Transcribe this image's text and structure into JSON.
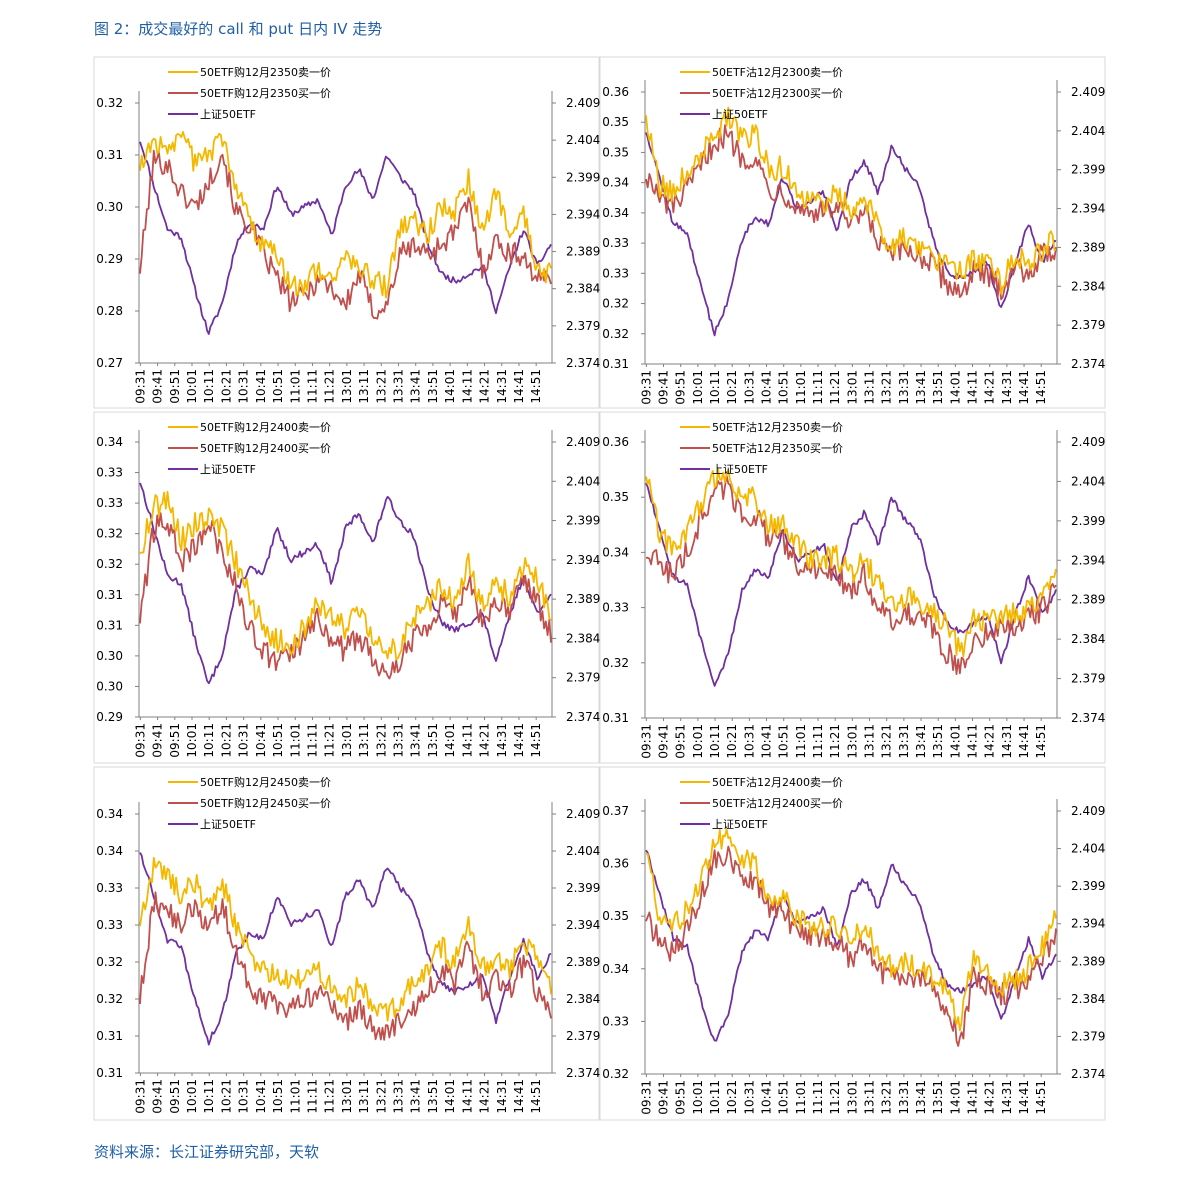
{
  "title": "图 2：成交最好的 call 和 put 日内 IV 走势",
  "source": "资料来源：长江证券研究部，天软",
  "colors": {
    "sell": "#f5b800",
    "buy": "#c0504d",
    "etf": "#7030a0",
    "axis": "#808080",
    "panel_border": "#d9d9d9"
  },
  "time_labels": [
    "09:31",
    "09:41",
    "09:51",
    "10:01",
    "10:11",
    "10:21",
    "10:31",
    "10:41",
    "10:51",
    "11:01",
    "11:11",
    "11:21",
    "13:01",
    "13:11",
    "13:21",
    "13:31",
    "13:41",
    "13:51",
    "14:01",
    "14:11",
    "14:21",
    "14:31",
    "14:41",
    "14:51"
  ],
  "chart_data": [
    {
      "type": "line",
      "legend": [
        "50ETF购12月2350卖一价",
        "50ETF购12月2350买一价",
        "上证50ETF"
      ],
      "y_left": {
        "ticks": [
          "0.32",
          "0.31",
          "0.30",
          "0.29",
          "0.28",
          "0.27"
        ],
        "range": [
          0.27,
          0.325
        ]
      },
      "y_right": {
        "ticks": [
          "2.409",
          "2.404",
          "2.399",
          "2.394",
          "2.389",
          "2.384",
          "2.379",
          "2.374"
        ],
        "range": [
          2.374,
          2.409
        ]
      },
      "sell_anchors": [
        0.311,
        0.318,
        0.313,
        0.32,
        0.312,
        0.314,
        0.318,
        0.306,
        0.3,
        0.294,
        0.293,
        0.287,
        0.286,
        0.29,
        0.288,
        0.292,
        0.29,
        0.288,
        0.286,
        0.298,
        0.3,
        0.297,
        0.303,
        0.302,
        0.309,
        0.297,
        0.306,
        0.298,
        0.301,
        0.289,
        0.289
      ],
      "buy_anchors": [
        0.29,
        0.313,
        0.312,
        0.306,
        0.303,
        0.308,
        0.315,
        0.302,
        0.299,
        0.293,
        0.288,
        0.283,
        0.284,
        0.288,
        0.286,
        0.282,
        0.289,
        0.281,
        0.282,
        0.293,
        0.295,
        0.293,
        0.295,
        0.298,
        0.304,
        0.29,
        0.296,
        0.293,
        0.293,
        0.287,
        0.289
      ],
      "etf_anchors": [
        2.404,
        2.398,
        2.392,
        2.391,
        2.384,
        2.378,
        2.382,
        2.39,
        2.393,
        2.392,
        2.398,
        2.394,
        2.395,
        2.396,
        2.391,
        2.398,
        2.4,
        2.396,
        2.402,
        2.399,
        2.397,
        2.39,
        2.386,
        2.385,
        2.386,
        2.387,
        2.381,
        2.387,
        2.392,
        2.387,
        2.39
      ]
    },
    {
      "type": "line",
      "legend": [
        "50ETF沽12月2300卖一价",
        "50ETF沽12月2300买一价",
        "上证50ETF"
      ],
      "y_left": {
        "ticks": [
          "0.36",
          "0.35",
          "0.35",
          "0.34",
          "0.34",
          "0.33",
          "0.33",
          "0.32",
          "0.32",
          "0.31"
        ],
        "range": [
          0.31,
          0.36
        ]
      },
      "y_right": {
        "ticks": [
          "2.409",
          "2.404",
          "2.399",
          "2.394",
          "2.389",
          "2.384",
          "2.379",
          "2.374"
        ],
        "range": [
          2.374,
          2.409
        ]
      },
      "sell_anchors": [
        0.356,
        0.343,
        0.342,
        0.345,
        0.349,
        0.353,
        0.355,
        0.352,
        0.352,
        0.346,
        0.346,
        0.342,
        0.34,
        0.34,
        0.341,
        0.338,
        0.341,
        0.335,
        0.332,
        0.333,
        0.332,
        0.33,
        0.328,
        0.327,
        0.329,
        0.328,
        0.325,
        0.33,
        0.329,
        0.331,
        0.333
      ],
      "buy_anchors": [
        0.345,
        0.34,
        0.339,
        0.342,
        0.346,
        0.351,
        0.352,
        0.348,
        0.348,
        0.342,
        0.342,
        0.339,
        0.338,
        0.338,
        0.339,
        0.335,
        0.338,
        0.332,
        0.33,
        0.331,
        0.33,
        0.328,
        0.325,
        0.323,
        0.327,
        0.326,
        0.324,
        0.328,
        0.327,
        0.33,
        0.331
      ],
      "etf_anchors": [
        2.404,
        2.398,
        2.392,
        2.391,
        2.384,
        2.378,
        2.382,
        2.39,
        2.393,
        2.392,
        2.398,
        2.394,
        2.395,
        2.396,
        2.391,
        2.398,
        2.4,
        2.396,
        2.402,
        2.399,
        2.397,
        2.39,
        2.386,
        2.385,
        2.386,
        2.387,
        2.381,
        2.387,
        2.392,
        2.387,
        2.39
      ]
    },
    {
      "type": "line",
      "legend": [
        "50ETF购12月2400卖一价",
        "50ETF购12月2400买一价",
        "上证50ETF"
      ],
      "y_left": {
        "ticks": [
          "0.34",
          "0.33",
          "0.33",
          "0.32",
          "0.32",
          "0.31",
          "0.31",
          "0.30",
          "0.30",
          "0.29"
        ],
        "range": [
          0.29,
          0.34
        ]
      },
      "y_right": {
        "ticks": [
          "2.409",
          "2.404",
          "2.399",
          "2.394",
          "2.389",
          "2.384",
          "2.379",
          "2.374"
        ],
        "range": [
          2.374,
          2.409
        ]
      },
      "sell_anchors": [
        0.32,
        0.328,
        0.33,
        0.322,
        0.325,
        0.327,
        0.324,
        0.318,
        0.312,
        0.306,
        0.304,
        0.303,
        0.306,
        0.311,
        0.308,
        0.306,
        0.309,
        0.304,
        0.302,
        0.303,
        0.308,
        0.31,
        0.314,
        0.311,
        0.318,
        0.31,
        0.314,
        0.312,
        0.318,
        0.315,
        0.308
      ],
      "buy_anchors": [
        0.308,
        0.324,
        0.326,
        0.318,
        0.321,
        0.325,
        0.32,
        0.314,
        0.306,
        0.302,
        0.3,
        0.301,
        0.304,
        0.308,
        0.304,
        0.302,
        0.305,
        0.3,
        0.299,
        0.3,
        0.305,
        0.307,
        0.311,
        0.308,
        0.316,
        0.306,
        0.311,
        0.309,
        0.316,
        0.311,
        0.305
      ],
      "etf_anchors": [
        2.404,
        2.398,
        2.392,
        2.391,
        2.384,
        2.378,
        2.382,
        2.39,
        2.393,
        2.392,
        2.398,
        2.394,
        2.395,
        2.396,
        2.391,
        2.398,
        2.4,
        2.396,
        2.402,
        2.399,
        2.397,
        2.39,
        2.386,
        2.385,
        2.386,
        2.387,
        2.381,
        2.387,
        2.392,
        2.387,
        2.39
      ]
    },
    {
      "type": "line",
      "legend": [
        "50ETF沽12月2350卖一价",
        "50ETF沽12月2350买一价",
        "上证50ETF"
      ],
      "y_left": {
        "ticks": [
          "0.36",
          "0.35",
          "0.34",
          "0.33",
          "0.32",
          "0.31"
        ],
        "range": [
          0.31,
          0.36
        ]
      },
      "y_right": {
        "ticks": [
          "2.409",
          "2.404",
          "2.399",
          "2.394",
          "2.389",
          "2.384",
          "2.379",
          "2.374"
        ],
        "range": [
          2.374,
          2.409
        ]
      },
      "sell_anchors": [
        0.354,
        0.343,
        0.341,
        0.344,
        0.349,
        0.353,
        0.354,
        0.35,
        0.35,
        0.345,
        0.345,
        0.341,
        0.339,
        0.339,
        0.339,
        0.336,
        0.339,
        0.334,
        0.331,
        0.332,
        0.331,
        0.329,
        0.327,
        0.322,
        0.328,
        0.327,
        0.329,
        0.329,
        0.33,
        0.332,
        0.336
      ],
      "buy_anchors": [
        0.34,
        0.338,
        0.336,
        0.34,
        0.346,
        0.351,
        0.352,
        0.347,
        0.347,
        0.342,
        0.342,
        0.338,
        0.337,
        0.336,
        0.336,
        0.333,
        0.336,
        0.33,
        0.328,
        0.329,
        0.328,
        0.326,
        0.322,
        0.318,
        0.325,
        0.325,
        0.327,
        0.327,
        0.328,
        0.33,
        0.333
      ],
      "etf_anchors": [
        2.404,
        2.398,
        2.392,
        2.391,
        2.384,
        2.378,
        2.382,
        2.39,
        2.393,
        2.392,
        2.398,
        2.394,
        2.395,
        2.396,
        2.391,
        2.398,
        2.4,
        2.396,
        2.402,
        2.399,
        2.397,
        2.39,
        2.386,
        2.385,
        2.386,
        2.387,
        2.381,
        2.387,
        2.392,
        2.387,
        2.39
      ]
    },
    {
      "type": "line",
      "legend": [
        "50ETF购12月2450卖一价",
        "50ETF购12月2450买一价",
        "上证50ETF"
      ],
      "y_left": {
        "ticks": [
          "0.34",
          "0.34",
          "0.33",
          "0.33",
          "0.32",
          "0.32",
          "0.31",
          "0.31"
        ],
        "range": [
          0.31,
          0.345
        ]
      },
      "y_right": {
        "ticks": [
          "2.409",
          "2.404",
          "2.399",
          "2.394",
          "2.389",
          "2.384",
          "2.379",
          "2.374"
        ],
        "range": [
          2.374,
          2.409
        ]
      },
      "sell_anchors": [
        0.33,
        0.338,
        0.337,
        0.334,
        0.336,
        0.332,
        0.336,
        0.33,
        0.326,
        0.324,
        0.323,
        0.322,
        0.323,
        0.324,
        0.322,
        0.32,
        0.322,
        0.319,
        0.318,
        0.32,
        0.322,
        0.324,
        0.327,
        0.325,
        0.33,
        0.324,
        0.326,
        0.324,
        0.328,
        0.325,
        0.322
      ],
      "buy_anchors": [
        0.32,
        0.333,
        0.332,
        0.33,
        0.333,
        0.329,
        0.333,
        0.326,
        0.322,
        0.32,
        0.319,
        0.319,
        0.32,
        0.321,
        0.319,
        0.317,
        0.319,
        0.316,
        0.315,
        0.317,
        0.319,
        0.321,
        0.324,
        0.322,
        0.327,
        0.321,
        0.323,
        0.321,
        0.325,
        0.321,
        0.318
      ],
      "etf_anchors": [
        2.404,
        2.398,
        2.392,
        2.391,
        2.384,
        2.378,
        2.382,
        2.39,
        2.393,
        2.392,
        2.398,
        2.394,
        2.395,
        2.396,
        2.391,
        2.398,
        2.4,
        2.396,
        2.402,
        2.399,
        2.397,
        2.39,
        2.386,
        2.385,
        2.386,
        2.387,
        2.381,
        2.387,
        2.392,
        2.387,
        2.39
      ]
    },
    {
      "type": "line",
      "legend": [
        "50ETF沽12月2400卖一价",
        "50ETF沽12月2400买一价",
        "上证50ETF"
      ],
      "y_left": {
        "ticks": [
          "0.37",
          "0.36",
          "0.35",
          "0.34",
          "0.33",
          "0.32"
        ],
        "range": [
          0.32,
          0.37
        ]
      },
      "y_right": {
        "ticks": [
          "2.409",
          "2.404",
          "2.399",
          "2.394",
          "2.389",
          "2.384",
          "2.379",
          "2.374"
        ],
        "range": [
          2.374,
          2.409
        ]
      },
      "sell_anchors": [
        0.362,
        0.35,
        0.348,
        0.351,
        0.357,
        0.364,
        0.365,
        0.361,
        0.36,
        0.354,
        0.354,
        0.35,
        0.348,
        0.348,
        0.348,
        0.345,
        0.348,
        0.343,
        0.34,
        0.341,
        0.34,
        0.338,
        0.336,
        0.33,
        0.342,
        0.339,
        0.337,
        0.338,
        0.34,
        0.344,
        0.35
      ],
      "buy_anchors": [
        0.35,
        0.345,
        0.343,
        0.347,
        0.354,
        0.361,
        0.362,
        0.357,
        0.357,
        0.351,
        0.351,
        0.347,
        0.346,
        0.346,
        0.345,
        0.342,
        0.345,
        0.34,
        0.338,
        0.339,
        0.338,
        0.336,
        0.333,
        0.326,
        0.339,
        0.337,
        0.335,
        0.336,
        0.338,
        0.342,
        0.346
      ],
      "etf_anchors": [
        2.404,
        2.398,
        2.392,
        2.391,
        2.384,
        2.378,
        2.382,
        2.39,
        2.393,
        2.392,
        2.398,
        2.394,
        2.395,
        2.396,
        2.391,
        2.398,
        2.4,
        2.396,
        2.402,
        2.399,
        2.397,
        2.39,
        2.386,
        2.385,
        2.386,
        2.387,
        2.381,
        2.387,
        2.392,
        2.387,
        2.39
      ]
    }
  ]
}
